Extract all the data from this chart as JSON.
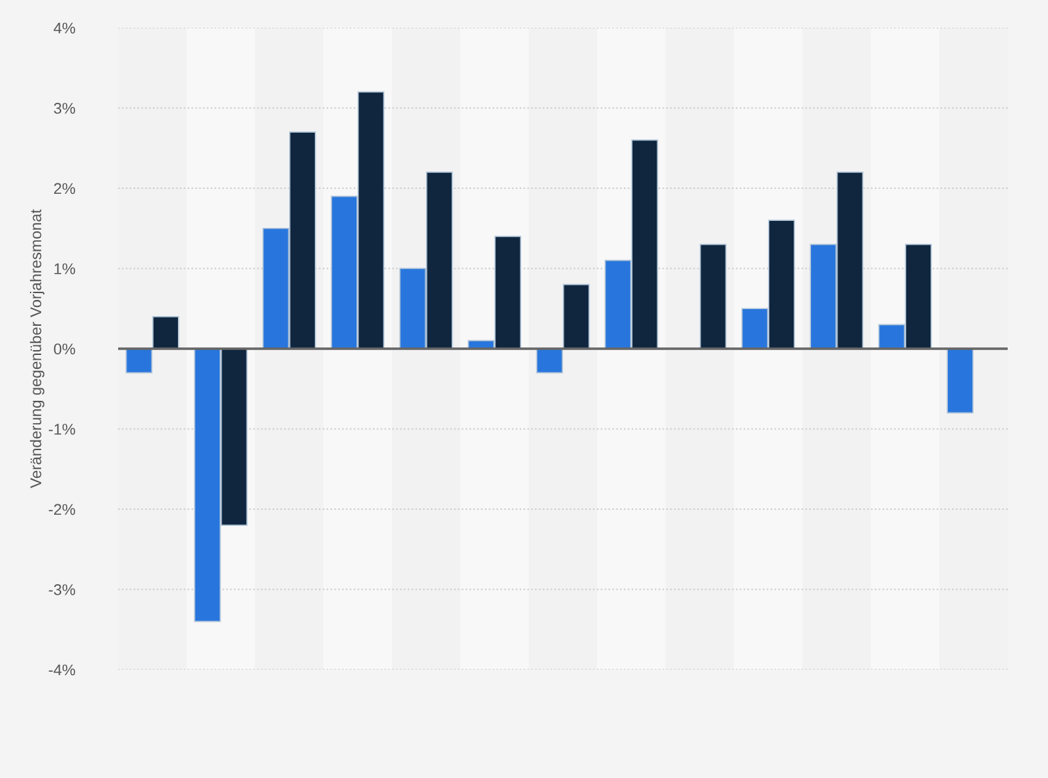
{
  "chart_data": {
    "type": "bar",
    "ylabel": "Veränderung gegenüber Vorjahresmonat",
    "categories": [
      null,
      null,
      null,
      null,
      null,
      null,
      null,
      null,
      null,
      null,
      null,
      null,
      null
    ],
    "series": [
      {
        "color": "#2876dd",
        "values": [
          -0.3,
          -3.4,
          1.5,
          1.9,
          1.0,
          0.1,
          -0.3,
          1.1,
          null,
          0.5,
          1.3,
          0.3,
          -0.8
        ]
      },
      {
        "color": "#0f263e",
        "values": [
          0.4,
          -2.2,
          2.7,
          3.2,
          2.2,
          1.4,
          0.8,
          2.6,
          1.3,
          1.6,
          2.2,
          1.3,
          null
        ]
      }
    ],
    "ylim": [
      -4,
      4
    ],
    "yticks": [
      {
        "value": -4,
        "label": "-4%"
      },
      {
        "value": -3,
        "label": "-3%"
      },
      {
        "value": -2,
        "label": "-2%"
      },
      {
        "value": -1,
        "label": "-1%"
      },
      {
        "value": 0,
        "label": "0%"
      },
      {
        "value": 1,
        "label": "1%"
      },
      {
        "value": 2,
        "label": "2%"
      },
      {
        "value": 3,
        "label": "3%"
      },
      {
        "value": 4,
        "label": "4%"
      }
    ],
    "ref_lines": [
      {
        "axis": "y",
        "value": 0,
        "color": "#666666"
      }
    ],
    "grid": "y",
    "legend": false,
    "tick_labels": "y"
  }
}
